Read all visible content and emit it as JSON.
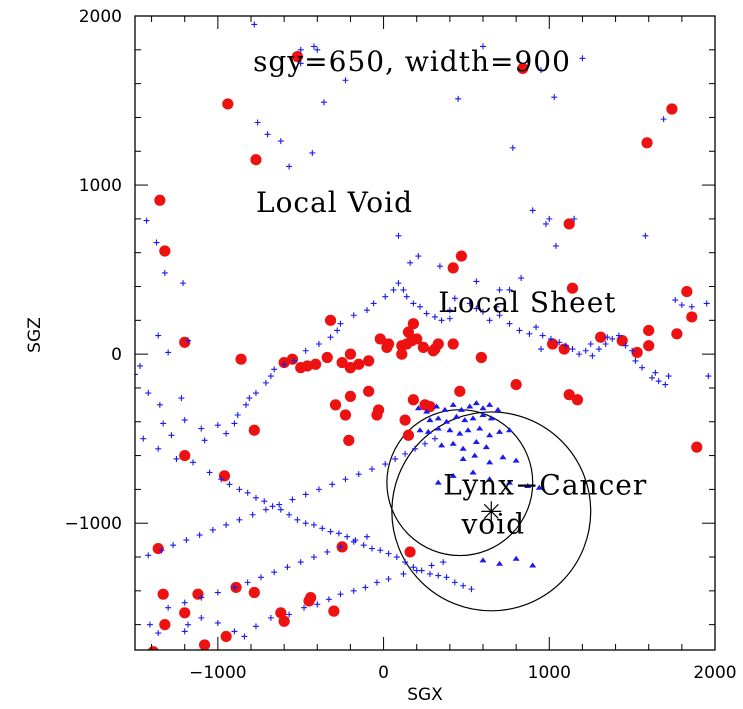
{
  "chart_data": {
    "type": "scatter",
    "title": "sgy=650, width=900",
    "xlabel": "SGX",
    "ylabel": "SGZ",
    "xlim": [
      -1500,
      2000
    ],
    "ylim": [
      -1750,
      2000
    ],
    "xticks": [
      -1000,
      0,
      1000,
      2000
    ],
    "yticks": [
      -1000,
      0,
      1000,
      2000
    ],
    "xtick_labels": [
      "−1000",
      "0",
      "1000",
      "2000"
    ],
    "ytick_labels": [
      "−1000",
      "0",
      "1000",
      "2000"
    ],
    "grid": false,
    "colors": {
      "red": "#ee1111",
      "blue": "#1a1aee",
      "axis": "#000000"
    },
    "annotations": [
      {
        "text": "Local Void",
        "x": -770,
        "y": 840
      },
      {
        "text": "Local Sheet",
        "x": 330,
        "y": 250
      },
      {
        "text": "Lynx−Cancer",
        "x": 360,
        "y": -830
      },
      {
        "text": "void",
        "x": 470,
        "y": -1060
      }
    ],
    "circles": [
      {
        "cx": 460,
        "cy": -760,
        "r": 440
      },
      {
        "cx": 650,
        "cy": -930,
        "r": 600
      }
    ],
    "star": {
      "x": 650,
      "y": -930
    },
    "series": [
      {
        "marker": "filled-circle",
        "color": "#ee1111",
        "x": [
          -520,
          840,
          -940,
          1740,
          1590,
          -770,
          -1350,
          1120,
          -1320,
          470,
          420,
          1140,
          1830,
          -320,
          1860,
          -20,
          150,
          180,
          1310,
          1440,
          1600,
          1770,
          420,
          590,
          -1200,
          20,
          -200,
          30,
          110,
          200,
          310,
          -860,
          -340,
          -250,
          -410,
          -460,
          -500,
          -550,
          -600,
          -200,
          -150,
          -90,
          110,
          140,
          170,
          240,
          300,
          330,
          -200,
          460,
          800,
          1120,
          1170,
          -90,
          -30,
          -230,
          -290,
          180,
          250,
          -40,
          280,
          -780,
          -200,
          -210,
          130,
          -1200,
          -960,
          1890,
          150,
          -1360,
          -250,
          160,
          -1330,
          -1320,
          -1120,
          -1200,
          -890,
          -780,
          -600,
          -620,
          -440,
          -450,
          -300,
          -950,
          -1390,
          -1080,
          1090,
          1020,
          1530,
          1600
        ],
        "y": [
          1760,
          1690,
          1480,
          1450,
          1250,
          1150,
          910,
          770,
          610,
          580,
          510,
          390,
          370,
          200,
          220,
          90,
          130,
          180,
          100,
          80,
          140,
          120,
          60,
          -20,
          70,
          40,
          0,
          60,
          50,
          90,
          30,
          -30,
          -20,
          -50,
          -60,
          -70,
          -80,
          -30,
          -50,
          -80,
          -60,
          -40,
          0,
          60,
          80,
          40,
          20,
          60,
          -80,
          -220,
          -180,
          -240,
          -270,
          -220,
          -330,
          -360,
          -300,
          -270,
          -300,
          -360,
          -310,
          -450,
          -250,
          -510,
          -390,
          -600,
          -720,
          -550,
          -480,
          -1150,
          -1140,
          -1170,
          -1420,
          -1600,
          -1420,
          -1530,
          -1380,
          -1410,
          -1580,
          -1530,
          -1440,
          -1460,
          -1520,
          -1670,
          -1760,
          -1720,
          30,
          60,
          10,
          50
        ]
      },
      {
        "marker": "plus",
        "color": "#1a1aee",
        "x": [
          -780,
          -420,
          -400,
          -360,
          -700,
          -620,
          -430,
          -570,
          -760,
          -500,
          -230,
          -500,
          780,
          450,
          600,
          950,
          1150,
          1690,
          1580,
          -1430,
          -1370,
          -1320,
          -1210,
          -1360,
          -1180,
          -1300,
          -1470,
          -1500,
          -1420,
          -1350,
          -1220,
          -1200,
          -1330,
          -1280,
          -1100,
          -1080,
          -1000,
          -950,
          -900,
          -880,
          -830,
          -810,
          -770,
          -710,
          -680,
          -660,
          -600,
          -540,
          -470,
          -390,
          -320,
          -280,
          -260,
          -180,
          -100,
          -60,
          10,
          60,
          90,
          120,
          140,
          180,
          220,
          260,
          310,
          350,
          400,
          430,
          520,
          560,
          600,
          640,
          700,
          760,
          820,
          880,
          920,
          960,
          1010,
          1060,
          1100,
          1140,
          1180,
          1220,
          1260,
          1300,
          1340,
          1380,
          1420,
          1460,
          1500,
          1560,
          1620,
          1660,
          1700,
          1760,
          1800,
          1860,
          1950,
          -1450,
          -1360,
          -1250,
          -1150,
          -1050,
          -980,
          -930,
          -870,
          -820,
          -770,
          -720,
          -670,
          -620,
          -570,
          -520,
          -470,
          -420,
          -370,
          -320,
          -270,
          -220,
          -170,
          -120,
          -70,
          -20,
          30,
          80,
          130,
          180,
          230,
          280,
          330,
          380,
          430,
          480,
          530,
          -1420,
          -1340,
          -1270,
          -1190,
          -1110,
          -1030,
          -950,
          -870,
          -790,
          -710,
          -630,
          -550,
          -470,
          -390,
          -310,
          -230,
          -150,
          -70,
          10,
          70,
          130,
          190,
          250,
          310,
          -1300,
          -1200,
          -1100,
          -1000,
          -900,
          -820,
          -740,
          -660,
          -580,
          -500,
          -420,
          -340,
          -260,
          -180,
          -100,
          -1410,
          -1360,
          -1200,
          -1180,
          -1100,
          -1000,
          -900,
          -840,
          -770,
          -680,
          -570,
          -480,
          -400,
          -330,
          -260,
          -180,
          -110,
          -40,
          30,
          120,
          200,
          290,
          360,
          900,
          980,
          1000,
          1040,
          830,
          760,
          680,
          950,
          1250,
          1350,
          1520,
          1640,
          1720,
          1960,
          340,
          210,
          160,
          90,
          700,
          560,
          400,
          1030,
          1200
        ],
        "y": [
          1950,
          1820,
          1800,
          1490,
          1300,
          1260,
          1190,
          1110,
          1370,
          1720,
          1620,
          1800,
          1220,
          1510,
          1820,
          1680,
          800,
          1390,
          700,
          790,
          660,
          480,
          420,
          110,
          80,
          10,
          -70,
          -120,
          -230,
          -300,
          -260,
          -390,
          -410,
          -480,
          -440,
          -510,
          -420,
          -470,
          -410,
          -360,
          -300,
          -260,
          -230,
          -170,
          -130,
          -90,
          -60,
          -40,
          20,
          60,
          100,
          140,
          180,
          230,
          260,
          300,
          340,
          380,
          420,
          380,
          340,
          300,
          280,
          240,
          220,
          200,
          260,
          330,
          300,
          270,
          250,
          200,
          230,
          180,
          140,
          120,
          160,
          110,
          90,
          70,
          50,
          30,
          0,
          20,
          -10,
          30,
          60,
          90,
          110,
          50,
          20,
          -80,
          -140,
          -160,
          -180,
          320,
          290,
          280,
          300,
          -500,
          -560,
          -620,
          -640,
          -700,
          -740,
          -770,
          -800,
          -820,
          -850,
          -870,
          -900,
          -920,
          -950,
          -980,
          -1000,
          -1010,
          -1030,
          -1050,
          -1060,
          -1080,
          -1100,
          -1130,
          -1150,
          -1160,
          -1180,
          -1200,
          -1230,
          -1260,
          -1280,
          -1300,
          -1310,
          -1320,
          -1350,
          -1370,
          -1390,
          -1190,
          -1160,
          -1130,
          -1100,
          -1070,
          -1040,
          -1010,
          -980,
          -950,
          -920,
          -890,
          -860,
          -830,
          -800,
          -770,
          -740,
          -710,
          -680,
          -650,
          -620,
          -590,
          -560,
          -530,
          -500,
          -1500,
          -1470,
          -1440,
          -1410,
          -1380,
          -1350,
          -1320,
          -1290,
          -1260,
          -1230,
          -1200,
          -1170,
          -1140,
          -1110,
          -1080,
          -1600,
          -1650,
          -1640,
          -1600,
          -1560,
          -1590,
          -1640,
          -1670,
          -1610,
          -1560,
          -1540,
          -1500,
          -1480,
          -1450,
          -1420,
          -1400,
          -1380,
          -1350,
          -1330,
          -1300,
          -1280,
          -1250,
          -1230,
          850,
          770,
          800,
          640,
          450,
          380,
          280,
          30,
          60,
          100,
          -40,
          -110,
          -130,
          -130,
          520,
          580,
          540,
          700,
          380,
          430,
          210,
          1520,
          1750
        ]
      },
      {
        "marker": "filled-triangle",
        "color": "#1a1aee",
        "x": [
          210,
          260,
          320,
          370,
          420,
          470,
          520,
          560,
          600,
          640,
          690,
          280,
          330,
          380,
          440,
          490,
          540,
          600,
          650,
          220,
          270,
          330,
          400,
          460,
          510,
          580,
          640,
          700,
          760,
          350,
          420,
          480,
          560,
          620,
          480,
          550,
          640,
          720,
          800,
          330,
          420,
          540,
          640,
          760,
          870,
          940,
          600,
          700,
          800,
          900
        ],
        "y": [
          -320,
          -340,
          -310,
          -330,
          -300,
          -330,
          -310,
          -290,
          -320,
          -300,
          -330,
          -390,
          -380,
          -400,
          -370,
          -390,
          -380,
          -360,
          -380,
          -450,
          -460,
          -440,
          -450,
          -470,
          -450,
          -440,
          -480,
          -460,
          -450,
          -540,
          -530,
          -560,
          -520,
          -550,
          -620,
          -600,
          -640,
          -610,
          -630,
          -760,
          -720,
          -700,
          -740,
          -760,
          -780,
          -790,
          -1220,
          -1240,
          -1210,
          -1250
        ]
      }
    ]
  }
}
